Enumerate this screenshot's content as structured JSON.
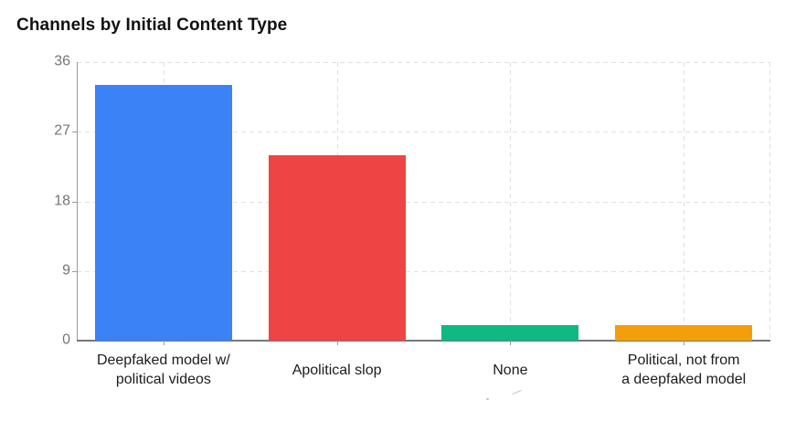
{
  "chart_data": {
    "type": "bar",
    "title": "Channels by Initial Content Type",
    "categories": [
      "Deepfaked model w/ political videos",
      "Apolitical slop",
      "None",
      "Political, not from a deepfaked model"
    ],
    "category_label_lines": [
      [
        "Deepfaked model w/",
        "political videos"
      ],
      [
        "Apolitical slop"
      ],
      [
        "None"
      ],
      [
        "Political, not from",
        "a deepfaked model"
      ]
    ],
    "values": [
      33,
      24,
      2,
      2
    ],
    "bar_colors": [
      "#3b82f6",
      "#ef4444",
      "#10b981",
      "#f59e0b"
    ],
    "xlabel": "",
    "ylabel": "",
    "ylim": [
      0,
      36
    ],
    "yticks": [
      0,
      9,
      18,
      27,
      36
    ],
    "grid": "dashed-horizontal-and-category-center-vertical",
    "legend": "none"
  },
  "style": {
    "background": "#ffffff",
    "title_color": "#111111",
    "grid_color": "#e0e0e0",
    "axis_color": "#9a9a9a",
    "baseline_color": "#76767e",
    "ytick_label_color": "#757575",
    "xtick_label_color": "#1c1c1c"
  }
}
